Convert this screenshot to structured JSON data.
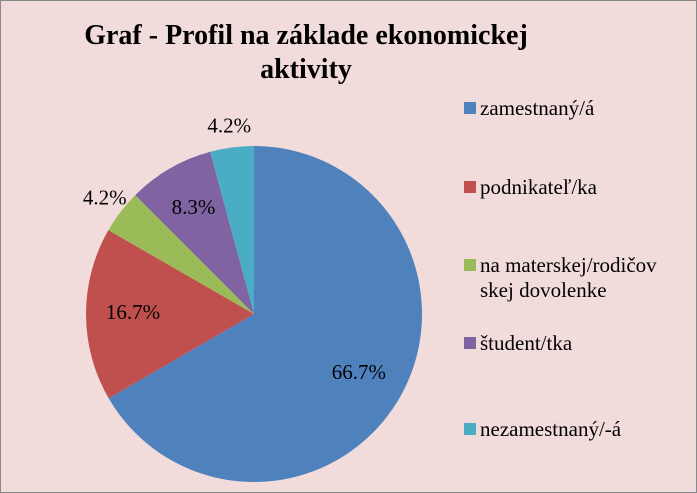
{
  "chart_data": {
    "type": "pie",
    "title": "Graf - Profil na základe ekonomickej aktivity",
    "categories": [
      "zamestnaný/á",
      "podnikateľ/ka",
      "na materskej/rodičovskej dovolenke",
      "študent/tka",
      "nezamestnaný/-á"
    ],
    "values": [
      66.7,
      16.7,
      4.2,
      8.3,
      4.2
    ],
    "value_labels": [
      "66.7%",
      "16.7%",
      "4.2%",
      "8.3%",
      "4.2%"
    ],
    "colors": [
      "#4f81bd",
      "#c0504d",
      "#9bbb59",
      "#8064a2",
      "#4bacc6"
    ],
    "legend": "right"
  }
}
